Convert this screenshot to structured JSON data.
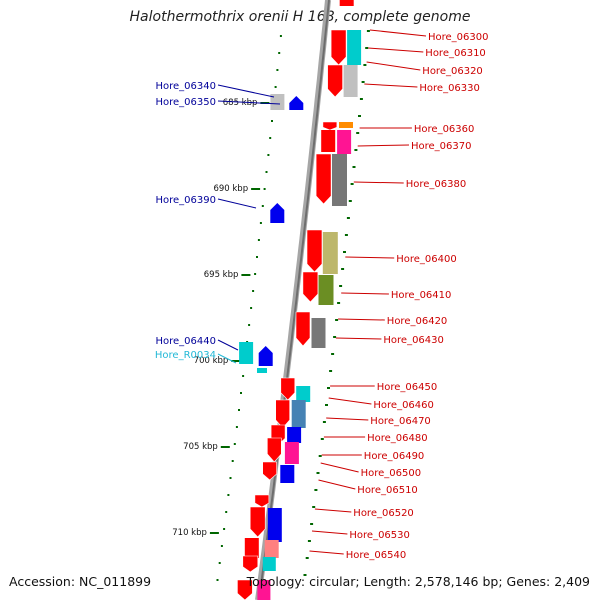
{
  "title": "Halothermothrix orenii H 168, complete genome",
  "footer": {
    "accession": "Accession: NC_011899",
    "info": "Topology: circular; Length: 2,578,146 bp; Genes: 2,409"
  },
  "colors": {
    "backbone": "#8c8c8c",
    "gene_red": "#ff0000",
    "gene_blue": "#0000ee",
    "gene_cyan": "#00cccc",
    "gene_magenta": "#ff1493",
    "gene_gray": "#777777",
    "gene_light_gray": "#c0c0c0",
    "gene_olive": "#6b8e23",
    "gene_khaki": "#bdb76b",
    "gene_orange": "#ff8c00",
    "gene_steelblue": "#4682b4",
    "gene_pink": "#ff8080",
    "label_red": "#cc0000",
    "label_blue": "#000099",
    "label_cyan": "#22b8d6",
    "tick": "#006600"
  },
  "scale_labels": [
    "685 kbp",
    "690 kbp",
    "695 kbp",
    "700 kbp",
    "705 kbp",
    "710 kbp"
  ],
  "right_labels": [
    "Hore_06300",
    "Hore_06310",
    "Hore_06320",
    "Hore_06330",
    "Hore_06360",
    "Hore_06370",
    "Hore_06380",
    "Hore_06400",
    "Hore_06410",
    "Hore_06420",
    "Hore_06430",
    "Hore_06450",
    "Hore_06460",
    "Hore_06470",
    "Hore_06480",
    "Hore_06490",
    "Hore_06500",
    "Hore_06510",
    "Hore_06520",
    "Hore_06530",
    "Hore_06540"
  ],
  "left_labels": [
    "Hore_06340",
    "Hore_06350",
    "Hore_06390",
    "Hore_06440",
    "Hore_R0034"
  ]
}
